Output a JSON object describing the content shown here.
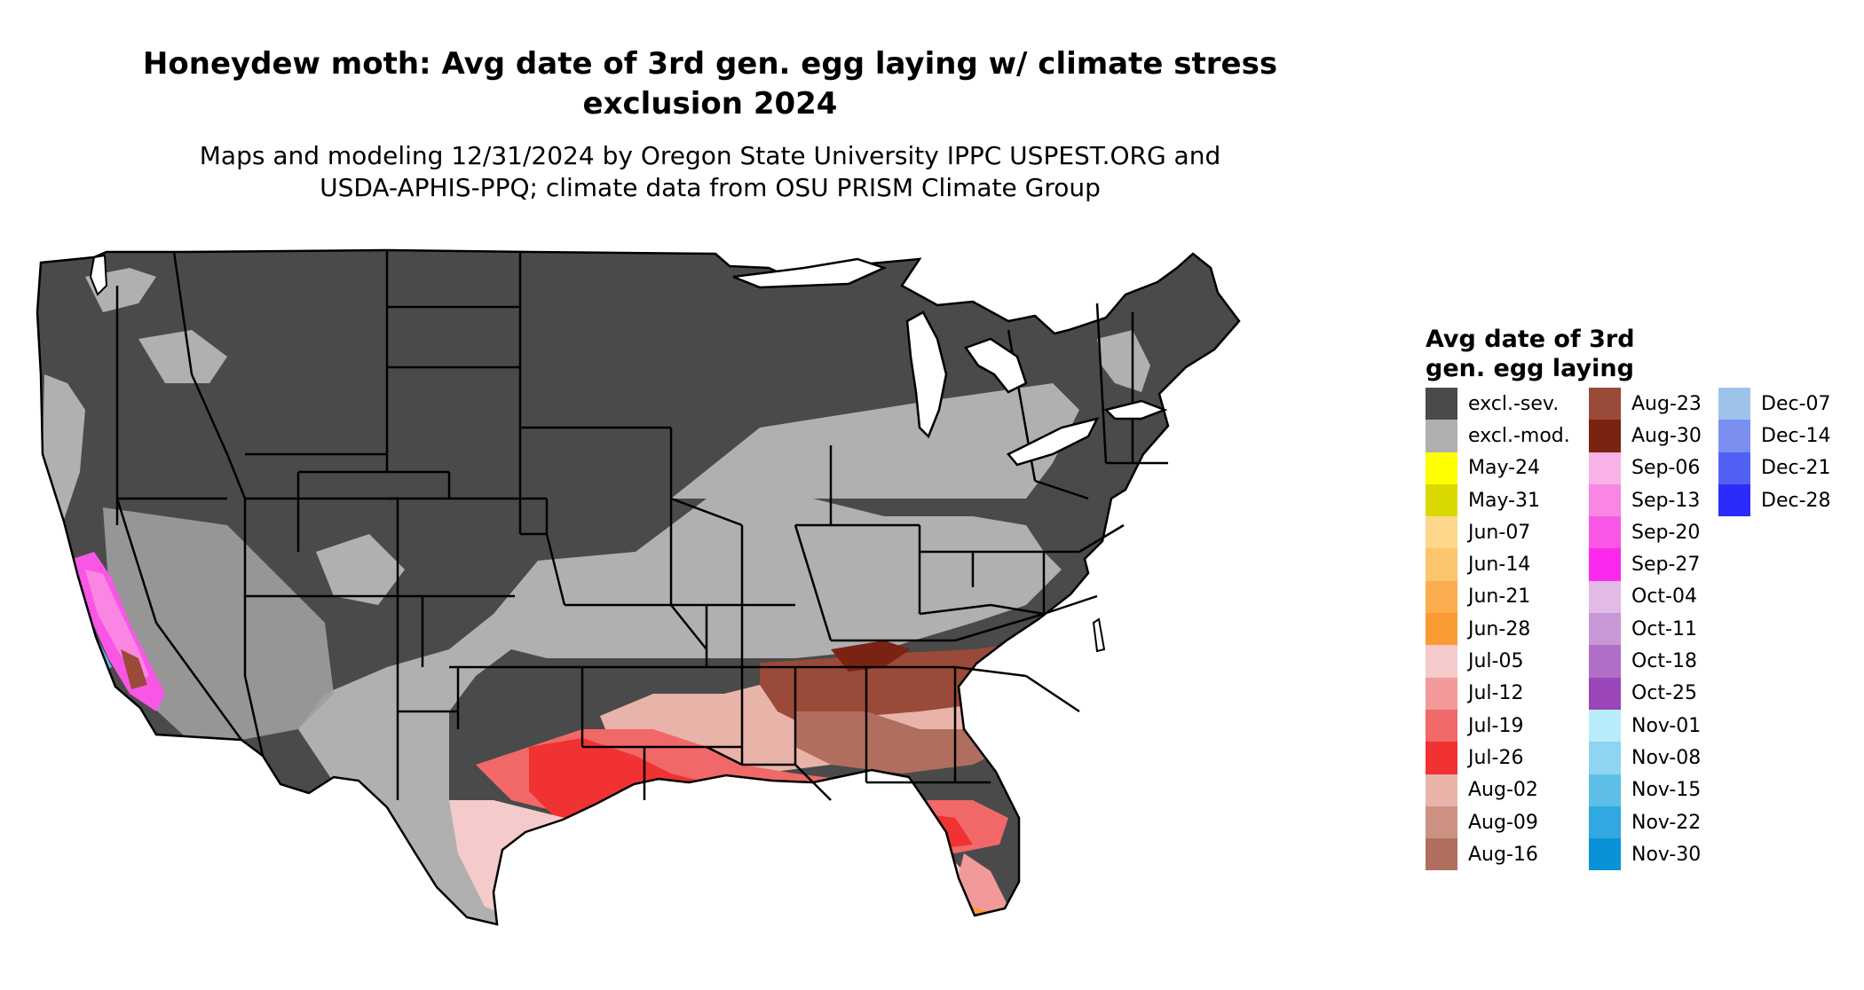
{
  "title": "Honeydew moth: Avg date of 3rd gen. egg laying w/ climate stress\nexclusion 2024",
  "subtitle": "Maps and modeling 12/31/2024 by Oregon State University IPPC USPEST.ORG and\nUSDA-APHIS-PPQ; climate data from OSU PRISM Climate Group",
  "legend": {
    "title": "Avg date of 3rd\ngen. egg laying",
    "columns": [
      [
        {
          "label": "excl.-sev.",
          "color": "#4a4a4a"
        },
        {
          "label": "excl.-mod.",
          "color": "#b0b0b0"
        },
        {
          "label": "May-24",
          "color": "#ffff00"
        },
        {
          "label": "May-31",
          "color": "#d9d900"
        },
        {
          "label": "Jun-07",
          "color": "#fdd78c"
        },
        {
          "label": "Jun-14",
          "color": "#fcc46c"
        },
        {
          "label": "Jun-21",
          "color": "#fbad50"
        },
        {
          "label": "Jun-28",
          "color": "#f99a35"
        },
        {
          "label": "Jul-05",
          "color": "#f4caca"
        },
        {
          "label": "Jul-12",
          "color": "#f29a9a"
        },
        {
          "label": "Jul-19",
          "color": "#f06868"
        },
        {
          "label": "Jul-26",
          "color": "#f03232"
        },
        {
          "label": "Aug-02",
          "color": "#e8b4aa"
        },
        {
          "label": "Aug-09",
          "color": "#cc9183"
        },
        {
          "label": "Aug-16",
          "color": "#b06e5e"
        }
      ],
      [
        {
          "label": "Aug-23",
          "color": "#9a4a38"
        },
        {
          "label": "Aug-30",
          "color": "#7b2312"
        },
        {
          "label": "Sep-06",
          "color": "#f9b2e6"
        },
        {
          "label": "Sep-13",
          "color": "#fa86e3"
        },
        {
          "label": "Sep-20",
          "color": "#f956e6"
        },
        {
          "label": "Sep-27",
          "color": "#fb28ee"
        },
        {
          "label": "Oct-04",
          "color": "#e1bbe6"
        },
        {
          "label": "Oct-11",
          "color": "#c897d6"
        },
        {
          "label": "Oct-18",
          "color": "#b06ec8"
        },
        {
          "label": "Oct-25",
          "color": "#9a45b8"
        },
        {
          "label": "Nov-01",
          "color": "#b9ecfb"
        },
        {
          "label": "Nov-08",
          "color": "#8dd5f0"
        },
        {
          "label": "Nov-15",
          "color": "#5dbfe8"
        },
        {
          "label": "Nov-22",
          "color": "#31a8df"
        },
        {
          "label": "Nov-30",
          "color": "#0993d6"
        }
      ],
      [
        {
          "label": "Dec-07",
          "color": "#9ec3ea"
        },
        {
          "label": "Dec-14",
          "color": "#7a8ff0"
        },
        {
          "label": "Dec-21",
          "color": "#5360f4"
        },
        {
          "label": "Dec-28",
          "color": "#2b2cfb"
        }
      ]
    ]
  }
}
